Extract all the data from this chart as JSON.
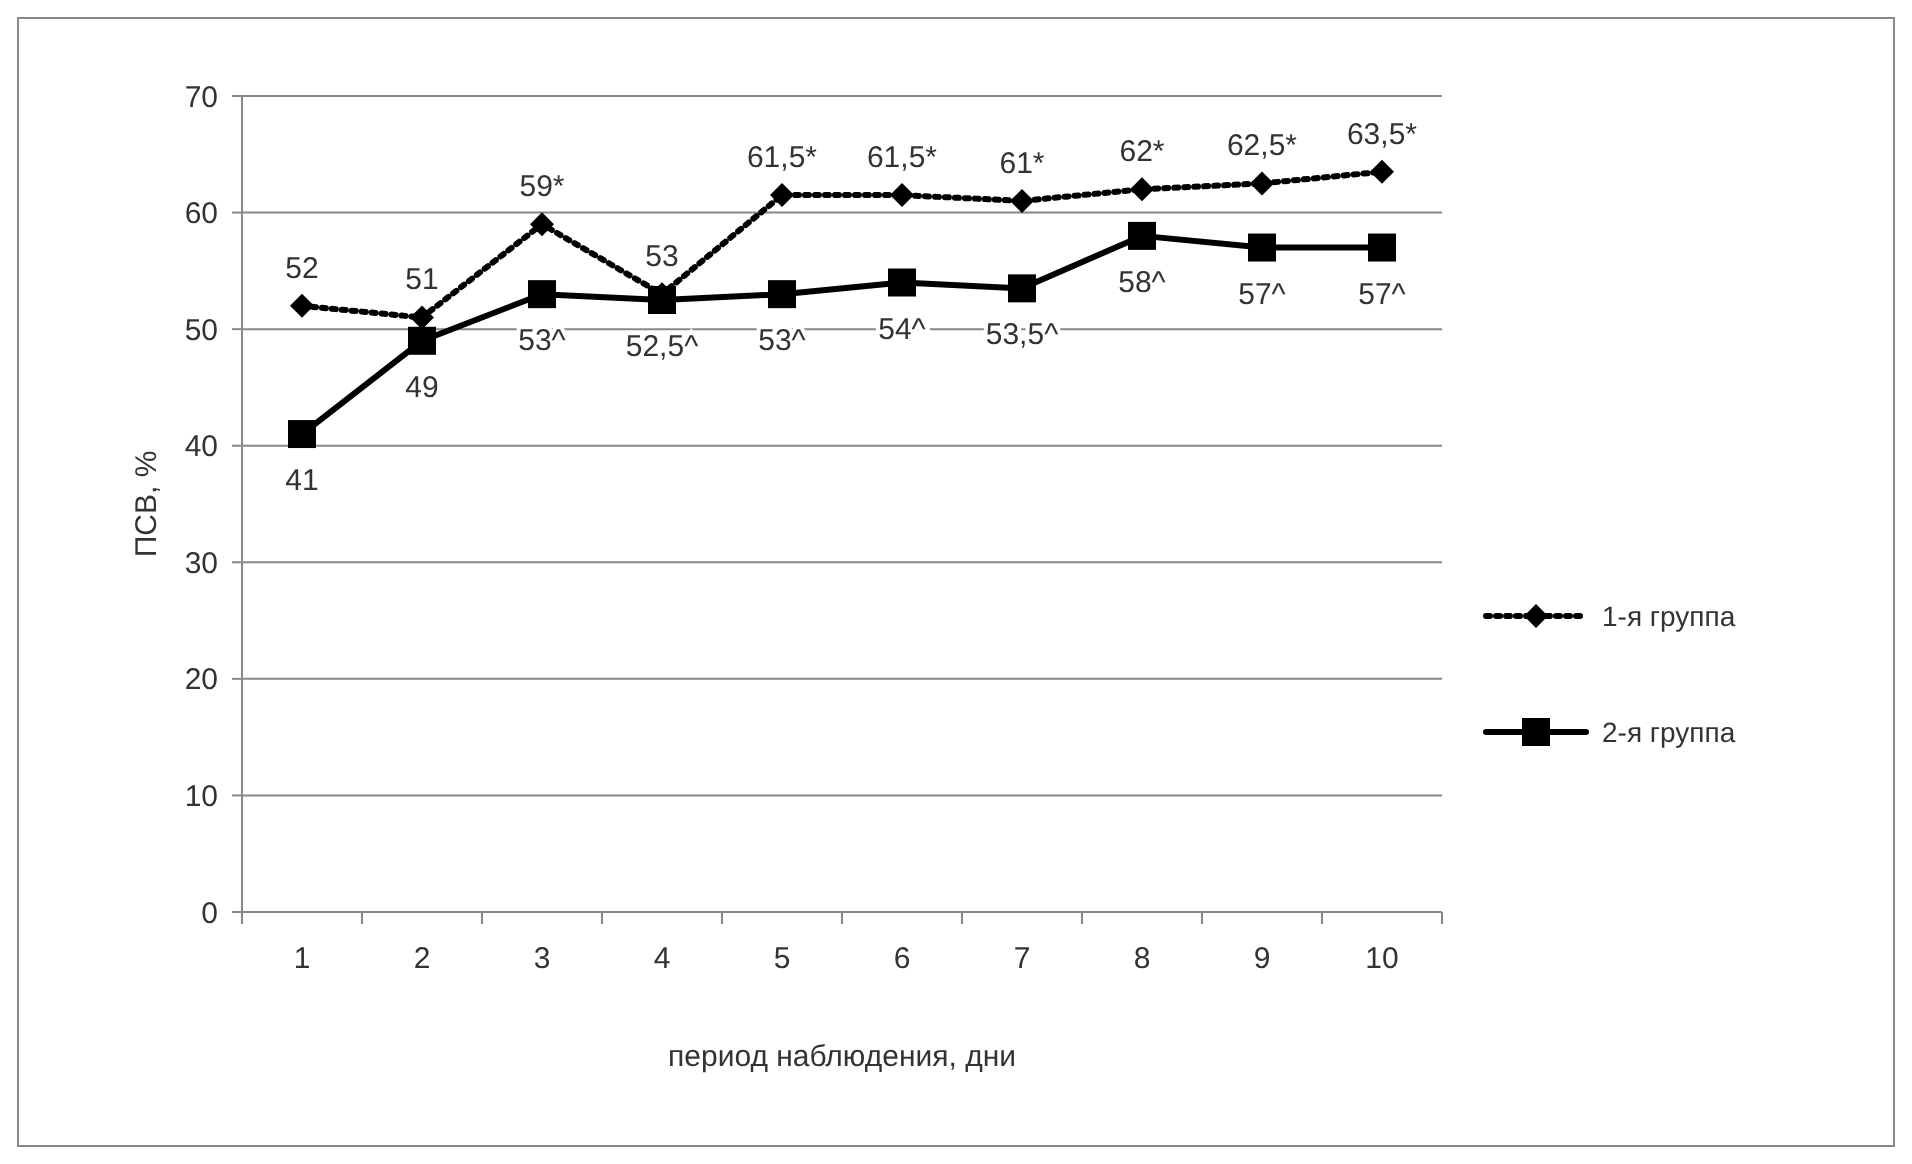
{
  "chart_data": {
    "type": "line",
    "xlabel": "период наблюдения, дни",
    "ylabel": "ПСВ, %",
    "categories": [
      "1",
      "2",
      "3",
      "4",
      "5",
      "6",
      "7",
      "8",
      "9",
      "10"
    ],
    "ylim": [
      0,
      70
    ],
    "yticks": [
      0,
      10,
      20,
      30,
      40,
      50,
      60,
      70
    ],
    "grid": "y",
    "legend": "right",
    "series": [
      {
        "name": "1-я группа",
        "color": "#000000",
        "marker": "diamond",
        "line_style": "dotted",
        "values": [
          52,
          51,
          59,
          53,
          61.5,
          61.5,
          61,
          62,
          62.5,
          63.5
        ],
        "value_labels": [
          "52",
          "51",
          "59*",
          "53",
          "61,5*",
          "61,5*",
          "61*",
          "62*",
          "62,5*",
          "63,5*"
        ]
      },
      {
        "name": "2-я группа",
        "color": "#000000",
        "marker": "square",
        "line_style": "solid",
        "values": [
          41,
          49,
          53,
          52.5,
          53,
          54,
          53.5,
          58,
          57,
          57
        ],
        "value_labels": [
          "41",
          "49",
          "53^",
          "52,5^",
          "53^",
          "54^",
          "53,5^",
          "58^",
          "57^",
          "57^"
        ]
      }
    ]
  }
}
